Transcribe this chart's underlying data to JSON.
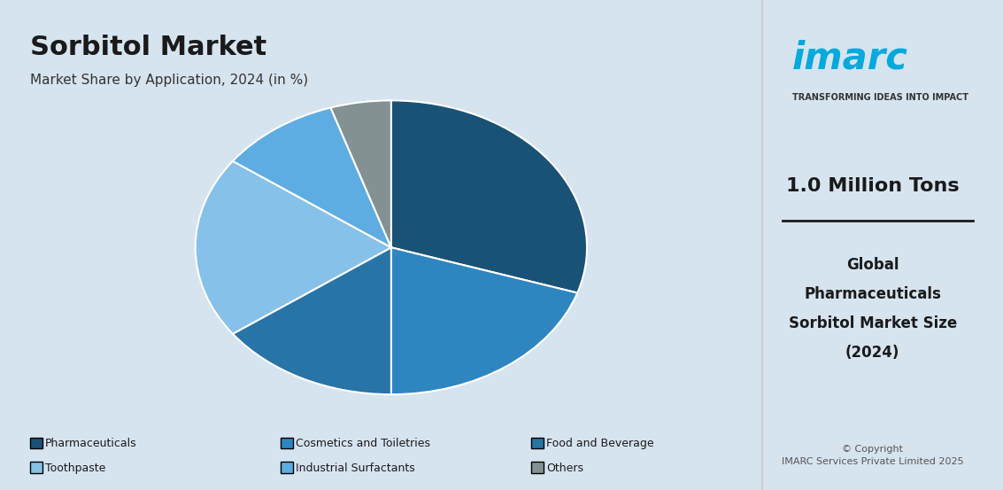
{
  "title": "Sorbitol Market",
  "subtitle": "Market Share by Application, 2024 (in %)",
  "bg_color": "#d6e4f0",
  "right_panel_bg": "#ffffff",
  "labels": [
    "Pharmaceuticals",
    "Cosmetics and Toiletries",
    "Food and Beverage",
    "Toothpaste",
    "Industrial Surfactants",
    "Others"
  ],
  "values": [
    30,
    20,
    15,
    20,
    10,
    5
  ],
  "colors": [
    "#1a5276",
    "#2e86c1",
    "#2874a6",
    "#85c1e9",
    "#5dade2",
    "#839192"
  ],
  "legend_labels": [
    "Pharmaceuticals",
    "Cosmetics and Toiletries",
    "Food and Beverage",
    "Toothpaste",
    "Industrial Surfactants",
    "Others"
  ],
  "right_value": "1.0 Million Tons",
  "right_sub1": "Global",
  "right_sub2": "Pharmaceuticals",
  "right_sub3": "Sorbitol Market Size",
  "right_sub4": "(2024)",
  "copyright": "© Copyright\nIMARC Services Private Limited 2025",
  "imarc_tagline": "TRANSFORMING IDEAS INTO IMPACT"
}
